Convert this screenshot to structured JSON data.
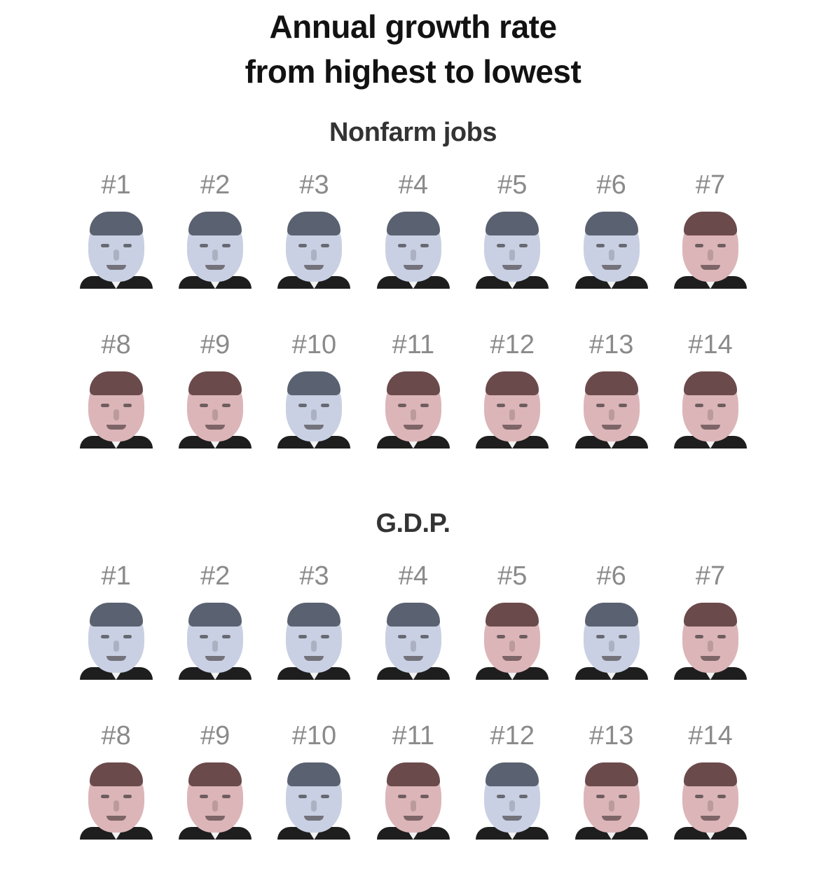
{
  "title_line1": "Annual growth rate",
  "title_line2": "from highest to lowest",
  "sections": [
    {
      "name": "Nonfarm jobs",
      "ranks": [
        "#1",
        "#2",
        "#3",
        "#4",
        "#5",
        "#6",
        "#7",
        "#8",
        "#9",
        "#10",
        "#11",
        "#12",
        "#13",
        "#14"
      ],
      "tints": [
        "blue",
        "blue",
        "blue",
        "blue",
        "blue",
        "blue",
        "red",
        "red",
        "red",
        "blue",
        "red",
        "red",
        "red",
        "red"
      ]
    },
    {
      "name": "G.D.P.",
      "ranks": [
        "#1",
        "#2",
        "#3",
        "#4",
        "#5",
        "#6",
        "#7",
        "#8",
        "#9",
        "#10",
        "#11",
        "#12",
        "#13",
        "#14"
      ],
      "tints": [
        "blue",
        "blue",
        "blue",
        "blue",
        "red",
        "blue",
        "red",
        "red",
        "red",
        "blue",
        "red",
        "blue",
        "red",
        "red"
      ]
    }
  ],
  "colors": {
    "blue_tint": "#c9d0e3",
    "red_tint": "#dcb5b8",
    "blue_hair": "#5a6170",
    "red_hair": "#6b4a4c"
  }
}
